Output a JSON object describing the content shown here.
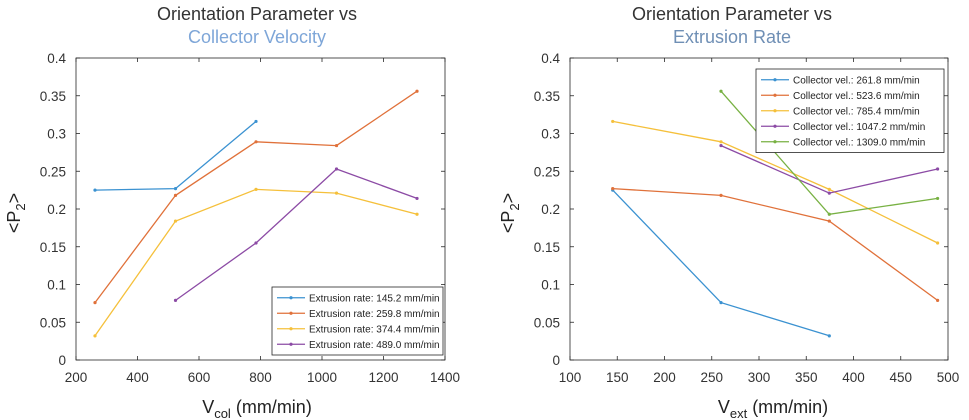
{
  "chart_data": [
    {
      "type": "line",
      "title_line1": "Orientation Parameter vs",
      "title_line2": "Collector Velocity",
      "title_line2_color": "#7ea6d8",
      "xlabel_main": "V",
      "xlabel_sub": "col",
      "xlabel_unit": " (mm/min)",
      "ylabel_main": "<P",
      "ylabel_sub": "2",
      "ylabel_end": ">",
      "xlim": [
        200,
        1400
      ],
      "ylim": [
        0,
        0.4
      ],
      "xticks": [
        200,
        400,
        600,
        800,
        1000,
        1200,
        1400
      ],
      "yticks": [
        0,
        0.05,
        0.1,
        0.15,
        0.2,
        0.25,
        0.3,
        0.35,
        0.4
      ],
      "legend_position": "bottom-right",
      "series": [
        {
          "name": "Extrusion rate: 145.2 mm/min",
          "color": "#3b92d1",
          "x": [
            261.8,
            523.6,
            785.4
          ],
          "y": [
            0.225,
            0.227,
            0.316
          ]
        },
        {
          "name": "Extrusion rate: 259.8 mm/min",
          "color": "#e0713a",
          "x": [
            261.8,
            523.6,
            785.4,
            1047.2,
            1309.0
          ],
          "y": [
            0.076,
            0.218,
            0.289,
            0.284,
            0.356
          ]
        },
        {
          "name": "Extrusion rate: 374.4 mm/min",
          "color": "#f5c03b",
          "x": [
            261.8,
            523.6,
            785.4,
            1047.2,
            1309.0
          ],
          "y": [
            0.032,
            0.184,
            0.226,
            0.221,
            0.193
          ]
        },
        {
          "name": "Extrusion rate: 489.0 mm/min",
          "color": "#8c4ba5",
          "x": [
            523.6,
            785.4,
            1047.2,
            1309.0
          ],
          "y": [
            0.079,
            0.155,
            0.253,
            0.214
          ]
        }
      ]
    },
    {
      "type": "line",
      "title_line1": "Orientation Parameter vs",
      "title_line2": "Extrusion Rate",
      "title_line2_color": "#6f8fb5",
      "xlabel_main": "V",
      "xlabel_sub": "ext",
      "xlabel_unit": " (mm/min)",
      "ylabel_main": "<P",
      "ylabel_sub": "2",
      "ylabel_end": ">",
      "xlim": [
        100,
        500
      ],
      "ylim": [
        0,
        0.4
      ],
      "xticks": [
        100,
        150,
        200,
        250,
        300,
        350,
        400,
        450,
        500
      ],
      "yticks": [
        0,
        0.05,
        0.1,
        0.15,
        0.2,
        0.25,
        0.3,
        0.35,
        0.4
      ],
      "legend_position": "top-right",
      "series": [
        {
          "name": "Collector vel.: 261.8 mm/min",
          "color": "#3b92d1",
          "x": [
            145.2,
            259.8,
            374.4
          ],
          "y": [
            0.225,
            0.076,
            0.032
          ]
        },
        {
          "name": "Collector vel.: 523.6 mm/min",
          "color": "#e0713a",
          "x": [
            145.2,
            259.8,
            374.4,
            489.0
          ],
          "y": [
            0.227,
            0.218,
            0.184,
            0.079
          ]
        },
        {
          "name": "Collector vel.: 785.4 mm/min",
          "color": "#f5c03b",
          "x": [
            145.2,
            259.8,
            374.4,
            489.0
          ],
          "y": [
            0.316,
            0.289,
            0.226,
            0.155
          ]
        },
        {
          "name": "Collector vel.: 1047.2 mm/min",
          "color": "#8c4ba5",
          "x": [
            259.8,
            374.4,
            489.0
          ],
          "y": [
            0.284,
            0.221,
            0.253
          ]
        },
        {
          "name": "Collector vel.: 1309.0 mm/min",
          "color": "#78b143",
          "x": [
            259.8,
            374.4,
            489.0
          ],
          "y": [
            0.356,
            0.193,
            0.214
          ]
        }
      ]
    }
  ]
}
